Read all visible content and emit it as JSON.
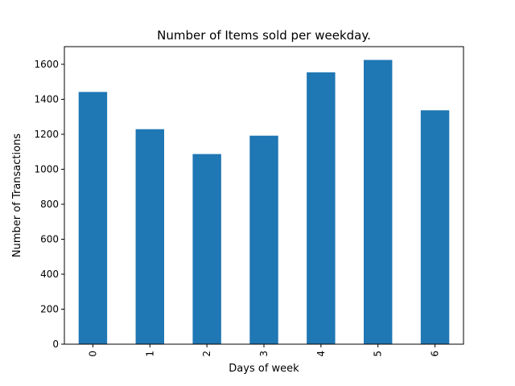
{
  "chart_data": {
    "type": "bar",
    "title": "Number of Items sold per weekday.",
    "xlabel": "Days of week",
    "ylabel": "Number of Transactions",
    "categories": [
      "0",
      "1",
      "2",
      "3",
      "4",
      "5",
      "6"
    ],
    "values": [
      1442,
      1229,
      1087,
      1192,
      1554,
      1625,
      1337
    ],
    "ylim": [
      0,
      1701
    ],
    "yticks": [
      0,
      200,
      400,
      600,
      800,
      1000,
      1200,
      1400,
      1600
    ],
    "bar_color": "#1f77b4",
    "grid": false,
    "legend": "none"
  }
}
